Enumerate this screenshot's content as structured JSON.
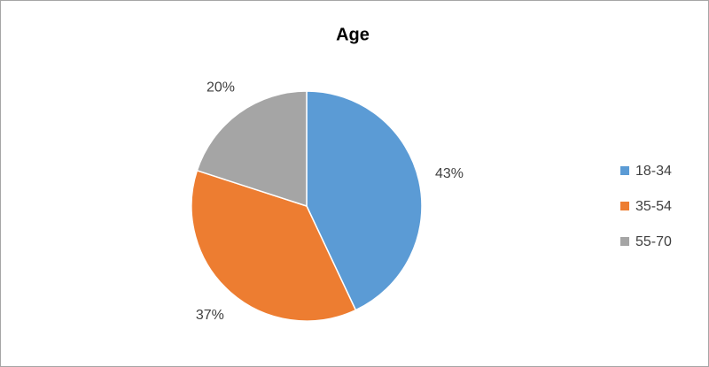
{
  "chart_data": {
    "type": "pie",
    "title": "Age",
    "categories": [
      "18-34",
      "35-54",
      "55-70"
    ],
    "values": [
      43,
      37,
      20
    ],
    "value_labels": [
      "43%",
      "37%",
      "20%"
    ],
    "colors": [
      "#5b9bd5",
      "#ed7d31",
      "#a5a5a5"
    ],
    "legend": "right"
  }
}
